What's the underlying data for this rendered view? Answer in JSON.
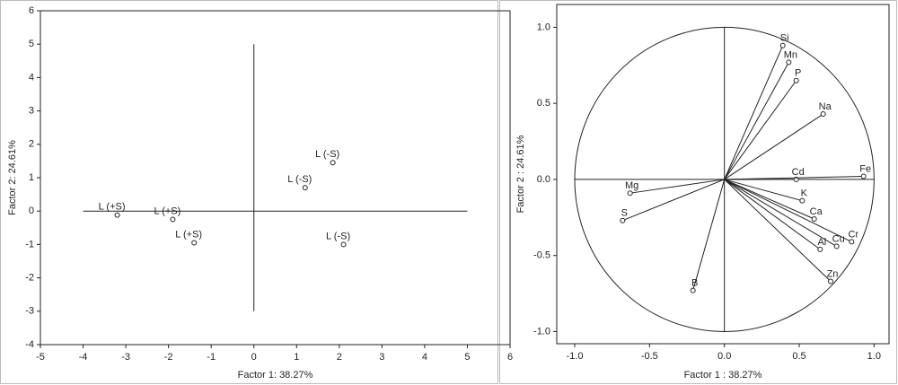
{
  "chart_data": [
    {
      "type": "scatter",
      "x_label": "Factor 1: 38.27%",
      "y_label": "Factor 2: 24.61%",
      "xlim": [
        -5,
        6
      ],
      "xticks": [
        -5,
        -4,
        -3,
        -2,
        -1,
        0,
        1,
        2,
        3,
        4,
        5,
        6
      ],
      "ylim": [
        -4,
        6
      ],
      "yticks": [
        -4,
        -3,
        -2,
        -1,
        0,
        1,
        2,
        3,
        4,
        5,
        6
      ],
      "hline": {
        "y": 0,
        "xlim": [
          -4,
          5
        ]
      },
      "vline": {
        "x": 0,
        "ylim": [
          -3,
          5
        ]
      },
      "color": "#222222",
      "labels": [
        "L (+S)",
        "L (+S)",
        "L (+S)",
        "L (-S)",
        "L (-S)",
        "L (-S)"
      ],
      "x": [
        -3.2,
        -1.9,
        -1.4,
        1.85,
        1.2,
        2.1
      ],
      "values": [
        -0.12,
        -0.25,
        -0.95,
        1.45,
        0.7,
        -1.0
      ]
    },
    {
      "type": "loadings",
      "x_label": "Factor 1 : 38.27%",
      "y_label": "Factor 2 : 24.61%",
      "xlim": [
        -1.12,
        1.1
      ],
      "xticks": [
        {
          "value": -1,
          "label": "-1.0"
        },
        {
          "value": -0.5,
          "label": "-0.5"
        },
        {
          "value": 0,
          "label": "0.0"
        },
        {
          "value": 0.5,
          "label": "0.5"
        },
        {
          "value": 1,
          "label": "1.0"
        }
      ],
      "ylim": [
        -1.08,
        1.15
      ],
      "yticks": [
        {
          "value": -1,
          "label": "-1.0"
        },
        {
          "value": -0.5,
          "label": "-0.5"
        },
        {
          "value": 0,
          "label": "0.0"
        },
        {
          "value": 0.5,
          "label": "0.5"
        },
        {
          "value": 1,
          "label": "1.0"
        }
      ],
      "circle_radius": 1,
      "color": "#222222",
      "labels": [
        "Si",
        "Mn",
        "P",
        "Na",
        "Cd",
        "Fe",
        "K",
        "Ca",
        "Cr",
        "Cu",
        "Al",
        "Zn",
        "Mg",
        "S",
        "B"
      ],
      "x": [
        0.39,
        0.43,
        0.48,
        0.66,
        0.48,
        0.93,
        0.52,
        0.6,
        0.85,
        0.75,
        0.64,
        0.71,
        -0.63,
        -0.68,
        -0.21
      ],
      "values": [
        0.88,
        0.77,
        0.65,
        0.43,
        0.0,
        0.02,
        -0.14,
        -0.26,
        -0.41,
        -0.44,
        -0.46,
        -0.67,
        -0.09,
        -0.27,
        -0.73
      ]
    }
  ]
}
